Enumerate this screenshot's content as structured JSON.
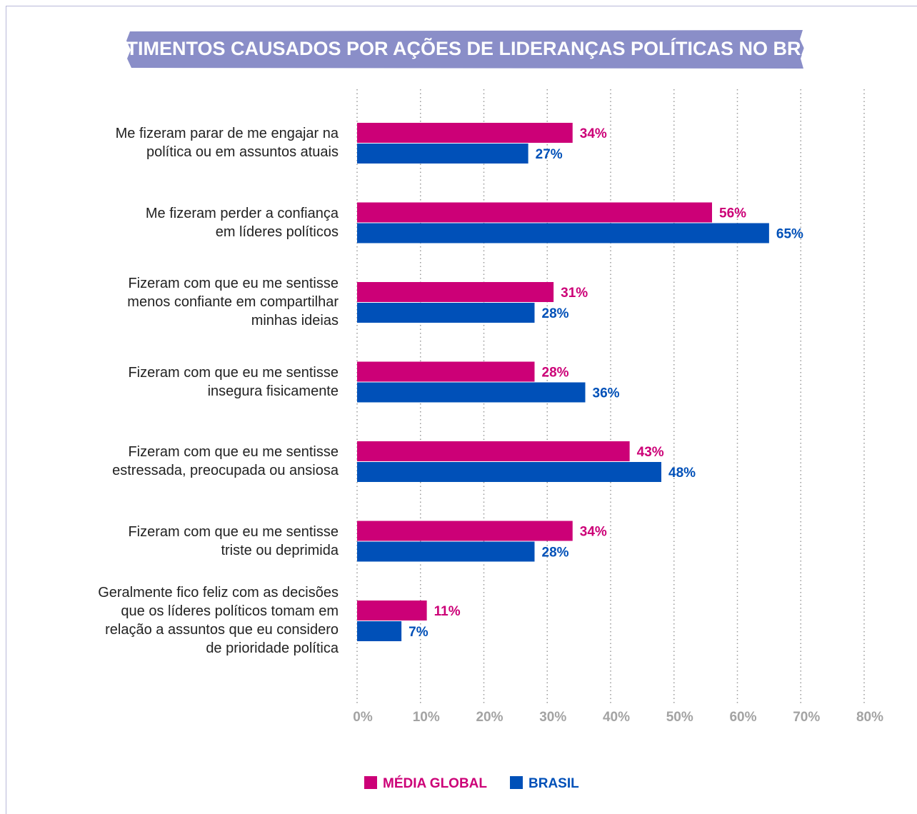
{
  "chart_data": {
    "type": "barh",
    "title": "SENTIMENTOS CAUSADOS POR AÇÕES DE LIDERANÇAS POLÍTICAS NO BRASIL",
    "categories": [
      "Me fizeram parar de me engajar na\npolítica ou em assuntos atuais",
      "Me fizeram perder a confiança\nem líderes políticos",
      "Fizeram com que eu me sentisse\nmenos confiante em compartilhar\nminhas ideias",
      "Fizeram com que eu me sentisse\ninsegura fisicamente",
      "Fizeram com que eu me sentisse\nestressada, preocupada ou ansiosa",
      "Fizeram com que eu me sentisse\ntriste ou deprimida",
      "Geralmente fico feliz com as decisões\nque os líderes políticos tomam em\nrelação a assuntos que eu considero\nde prioridade política"
    ],
    "series": [
      {
        "name": "MÉDIA GLOBAL",
        "color": "#cc0077",
        "values": [
          34,
          56,
          31,
          28,
          43,
          34,
          11
        ],
        "value_labels": [
          "34%",
          "56%",
          "31%",
          "28%",
          "43%",
          "34%",
          "11%"
        ]
      },
      {
        "name": "BRASIL",
        "color": "#0050b8",
        "values": [
          27,
          65,
          28,
          36,
          48,
          28,
          7
        ],
        "value_labels": [
          "27%",
          "65%",
          "28%",
          "36%",
          "48%",
          "28%",
          "7%"
        ]
      }
    ],
    "xlim": [
      0,
      80
    ],
    "xticks": [
      {
        "value": 0,
        "label": "0%"
      },
      {
        "value": 10,
        "label": "10%"
      },
      {
        "value": 20,
        "label": "20%"
      },
      {
        "value": 30,
        "label": "30%"
      },
      {
        "value": 40,
        "label": "40%"
      },
      {
        "value": 50,
        "label": "50%"
      },
      {
        "value": 60,
        "label": "60%"
      },
      {
        "value": 70,
        "label": "70%"
      },
      {
        "value": 80,
        "label": "80%"
      }
    ],
    "grid": true,
    "legend": "bottom"
  }
}
